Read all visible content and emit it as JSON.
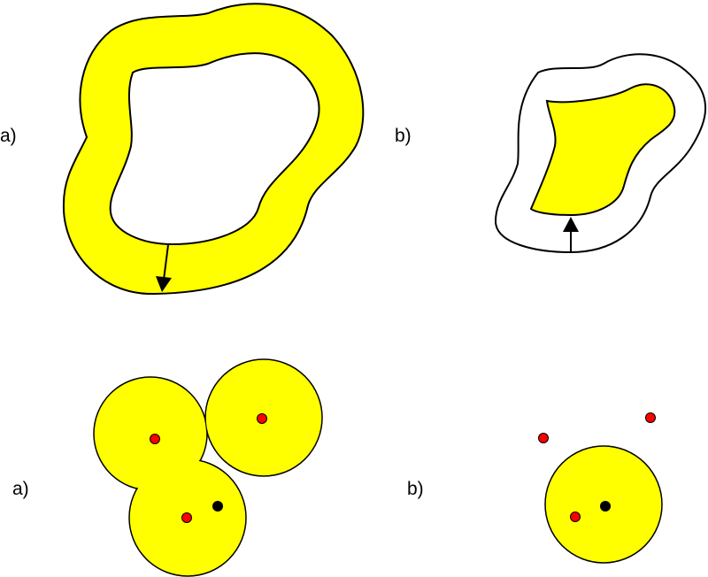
{
  "labels": {
    "top_left": "a)",
    "top_right": "b)",
    "bottom_left": "a)",
    "bottom_right": "b)"
  },
  "colors": {
    "fill": "#ffff00",
    "stroke": "#000000",
    "background": "#ffffff",
    "point_red": "#ff0000",
    "point_center": "#000000"
  },
  "panels": [
    {
      "id": "dilation",
      "label_key": "top_left",
      "arrow": "outward"
    },
    {
      "id": "erosion",
      "label_key": "top_right",
      "arrow": "inward"
    },
    {
      "id": "union-of-disks",
      "label_key": "bottom_left",
      "disks": 3,
      "red_points": 3,
      "center_point": 1
    },
    {
      "id": "single-disk",
      "label_key": "bottom_right",
      "disks": 1,
      "red_points": 3,
      "center_point": 1
    }
  ]
}
